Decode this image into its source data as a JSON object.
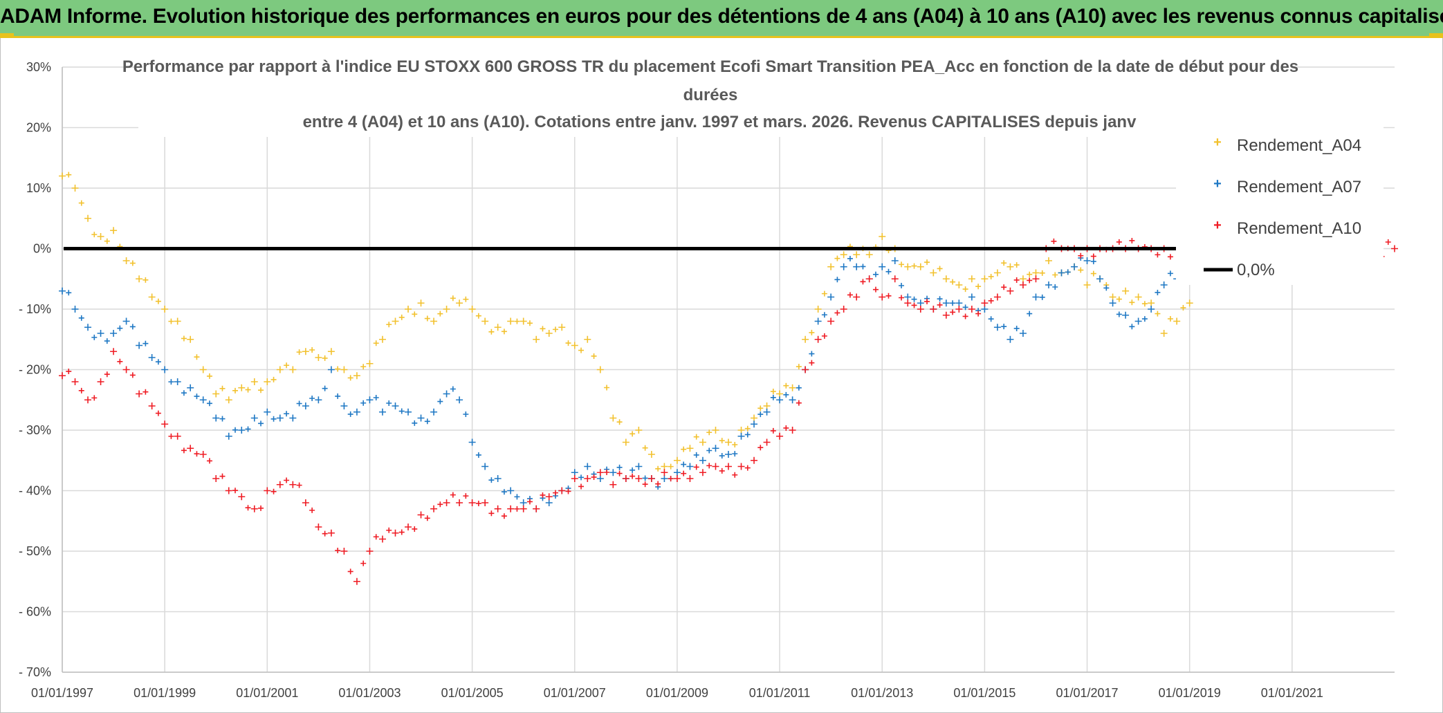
{
  "header": {
    "title": "ADAM Informe. Evolution historique des performances en euros pour des détentions de 4 ans (A04) à 10 ans (A10) avec les revenus connus capitalisés"
  },
  "colors": {
    "A04": "#f2c12e",
    "A07": "#1f78c4",
    "A10": "#ef1c24",
    "zero": "#000000",
    "grid": "#d9d9d9",
    "header_bg": "#7dc97f",
    "header_border": "#e8c21c"
  },
  "chart_data": {
    "type": "scatter",
    "title_lines": [
      "Performance par rapport à l'indice EU STOXX 600 GROSS TR  du placement Ecofi Smart Transition PEA_Acc en fonction de la date de début pour des",
      "durées",
      "entre 4 (A04) et 10 ans (A10). Cotations entre janv. 1997 et mars. 2026. Revenus CAPITALISES depuis janv"
    ],
    "ylim": [
      -70,
      30
    ],
    "xlim": [
      1997.0,
      2023.0
    ],
    "y_ticks": [
      30,
      20,
      10,
      0,
      -10,
      -20,
      -30,
      -40,
      -50,
      -60,
      -70
    ],
    "y_tick_labels": [
      "30%",
      "20%",
      "10%",
      "0%",
      "- 10%",
      "- 20%",
      "- 30%",
      "- 40%",
      "- 50%",
      "- 60%",
      "- 70%"
    ],
    "x_ticks": [
      1997,
      1999,
      2001,
      2003,
      2005,
      2007,
      2009,
      2011,
      2013,
      2015,
      2017,
      2019,
      2021
    ],
    "x_tick_labels": [
      "01/01/1997",
      "01/01/1999",
      "01/01/2001",
      "01/01/2003",
      "01/01/2005",
      "01/01/2007",
      "01/01/2009",
      "01/01/2011",
      "01/01/2013",
      "01/01/2015",
      "01/01/2017",
      "01/01/2019",
      "01/01/2021"
    ],
    "legend": [
      "Rendement_A04",
      "Rendement_A07",
      "Rendement_A10",
      "0,0%"
    ],
    "legend_position": "right",
    "series": [
      {
        "name": "Rendement_A04",
        "x": [
          1997.0,
          1997.25,
          1997.5,
          1997.75,
          1998.0,
          1998.25,
          1998.5,
          1998.75,
          1999.0,
          1999.25,
          1999.5,
          1999.75,
          2000.0,
          2000.25,
          2000.5,
          2000.75,
          2001.0,
          2001.25,
          2001.5,
          2001.75,
          2002.0,
          2002.25,
          2002.5,
          2002.75,
          2003.0,
          2003.25,
          2003.5,
          2003.75,
          2004.0,
          2004.25,
          2004.5,
          2004.75,
          2005.0,
          2005.25,
          2005.5,
          2005.75,
          2006.0,
          2006.25,
          2006.5,
          2006.75,
          2007.0,
          2007.25,
          2007.5,
          2007.75,
          2008.0,
          2008.25,
          2008.5,
          2008.75,
          2009.0,
          2009.25,
          2009.5,
          2009.75,
          2010.0,
          2010.25,
          2010.5,
          2010.75,
          2011.0,
          2011.25,
          2011.5,
          2011.75,
          2012.0,
          2012.25,
          2012.5,
          2012.75,
          2013.0,
          2013.25,
          2013.5,
          2013.75,
          2014.0,
          2014.25,
          2014.5,
          2014.75,
          2015.0,
          2015.25,
          2015.5,
          2015.75,
          2016.0,
          2016.25,
          2016.5,
          2016.75,
          2017.0,
          2017.25,
          2017.5,
          2017.75,
          2018.0,
          2018.25,
          2018.5,
          2018.75,
          2019.0
        ],
        "values": [
          12,
          10,
          5,
          2,
          3,
          -2,
          -5,
          -8,
          -10,
          -12,
          -15,
          -20,
          -24,
          -25,
          -23,
          -22,
          -22,
          -20,
          -20,
          -17,
          -18,
          -17,
          -20,
          -21,
          -19,
          -15,
          -12,
          -10,
          -9,
          -12,
          -10,
          -9,
          -10,
          -12,
          -13,
          -12,
          -12,
          -15,
          -14,
          -13,
          -16,
          -15,
          -20,
          -28,
          -32,
          -30,
          -34,
          -36,
          -35,
          -33,
          -32,
          -30,
          -32,
          -30,
          -28,
          -26,
          -24,
          -23,
          -15,
          -10,
          -3,
          -1,
          -1,
          -1,
          2,
          0,
          -3,
          -3,
          -4,
          -5,
          -6,
          -5,
          -5,
          -4,
          -3,
          -5,
          -4,
          -2,
          -4,
          -3,
          -6,
          -5,
          -8,
          -7,
          -8,
          -9,
          -14,
          -12,
          -9
        ]
      },
      {
        "name": "Rendement_A07",
        "x": [
          1997.0,
          1997.25,
          1997.5,
          1997.75,
          1998.0,
          1998.25,
          1998.5,
          1998.75,
          1999.0,
          1999.25,
          1999.5,
          1999.75,
          2000.0,
          2000.25,
          2000.5,
          2000.75,
          2001.0,
          2001.25,
          2001.5,
          2001.75,
          2002.0,
          2002.25,
          2002.5,
          2002.75,
          2003.0,
          2003.25,
          2003.5,
          2003.75,
          2004.0,
          2004.25,
          2004.5,
          2004.75,
          2005.0,
          2005.25,
          2005.5,
          2005.75,
          2006.0,
          2006.25,
          2006.5,
          2006.75,
          2007.0,
          2007.25,
          2007.5,
          2007.75,
          2008.0,
          2008.25,
          2008.5,
          2008.75,
          2009.0,
          2009.25,
          2009.5,
          2009.75,
          2010.0,
          2010.25,
          2010.5,
          2010.75,
          2011.0,
          2011.25,
          2011.5,
          2011.75,
          2012.0,
          2012.25,
          2012.5,
          2012.75,
          2013.0,
          2013.25,
          2013.5,
          2013.75,
          2014.0,
          2014.25,
          2014.5,
          2014.75,
          2015.0,
          2015.25,
          2015.5,
          2015.75,
          2016.0,
          2016.25,
          2016.5,
          2016.75,
          2017.0,
          2017.25,
          2017.5,
          2017.75,
          2018.0,
          2018.25,
          2018.5,
          2018.75,
          2019.0
        ],
        "values": [
          -7,
          -10,
          -13,
          -14,
          -14,
          -12,
          -16,
          -18,
          -20,
          -22,
          -23,
          -25,
          -28,
          -31,
          -30,
          -28,
          -27,
          -28,
          -28,
          -26,
          -25,
          -20,
          -26,
          -27,
          -25,
          -27,
          -26,
          -27,
          -28,
          -27,
          -24,
          -25,
          -32,
          -36,
          -38,
          -40,
          -42,
          -43,
          -42,
          -40,
          -37,
          -36,
          -38,
          -37,
          -38,
          -36,
          -38,
          -38,
          -37,
          -36,
          -35,
          -33,
          -34,
          -31,
          -29,
          -27,
          -25,
          -25,
          -20,
          -12,
          -8,
          -3,
          -3,
          -5,
          -3,
          -2,
          -8,
          -9,
          -10,
          -9,
          -9,
          -8,
          -10,
          -13,
          -15,
          -14,
          -8,
          -6,
          -4,
          -3,
          -2,
          -5,
          -9,
          -11,
          -12,
          -10,
          -6,
          -5,
          -4
        ]
      },
      {
        "name": "Rendement_A10",
        "x": [
          1997.0,
          1997.25,
          1997.5,
          1997.75,
          1998.0,
          1998.25,
          1998.5,
          1998.75,
          1999.0,
          1999.25,
          1999.5,
          1999.75,
          2000.0,
          2000.25,
          2000.5,
          2000.75,
          2001.0,
          2001.25,
          2001.5,
          2001.75,
          2002.0,
          2002.25,
          2002.5,
          2002.75,
          2003.0,
          2003.25,
          2003.5,
          2003.75,
          2004.0,
          2004.25,
          2004.5,
          2004.75,
          2005.0,
          2005.25,
          2005.5,
          2005.75,
          2006.0,
          2006.25,
          2006.5,
          2006.75,
          2007.0,
          2007.25,
          2007.5,
          2007.75,
          2008.0,
          2008.25,
          2008.5,
          2008.75,
          2009.0,
          2009.25,
          2009.5,
          2009.75,
          2010.0,
          2010.25,
          2010.5,
          2010.75,
          2011.0,
          2011.25,
          2011.5,
          2011.75,
          2012.0,
          2012.25,
          2012.5,
          2012.75,
          2013.0,
          2013.25,
          2013.5,
          2013.75,
          2014.0,
          2014.25,
          2014.5,
          2014.75,
          2015.0,
          2015.25,
          2015.5,
          2015.75,
          2016.0
        ],
        "values": [
          -21,
          -22,
          -25,
          -22,
          -17,
          -20,
          -24,
          -26,
          -29,
          -31,
          -33,
          -34,
          -38,
          -40,
          -41,
          -43,
          -40,
          -39,
          -39,
          -42,
          -46,
          -47,
          -50,
          -55,
          -50,
          -48,
          -47,
          -46,
          -44,
          -43,
          -42,
          -42,
          -42,
          -42,
          -43,
          -43,
          -43,
          -43,
          -41,
          -40,
          -38,
          -38,
          -37,
          -39,
          -38,
          -38,
          -38,
          -37,
          -38,
          -38,
          -37,
          -36,
          -36,
          -36,
          -35,
          -32,
          -31,
          -30,
          -20,
          -15,
          -12,
          -10,
          -8,
          -5,
          -8,
          -5,
          -9,
          -10,
          -10,
          -11,
          -10,
          -10,
          -9,
          -8,
          -7,
          -6,
          -5
        ]
      },
      {
        "name": "Rendement_A10 (tail, flat)",
        "x": [
          2016.2,
          2016.5,
          2016.75,
          2017.0,
          2017.25,
          2017.5,
          2017.75,
          2018.0,
          2018.25,
          2018.5,
          2018.75,
          2019.0,
          2023.0
        ],
        "values": [
          0,
          0,
          0,
          0,
          0,
          0,
          0,
          0,
          0,
          0,
          0,
          0,
          0
        ]
      }
    ],
    "reference_line": {
      "name": "0,0%",
      "y": 0
    }
  }
}
